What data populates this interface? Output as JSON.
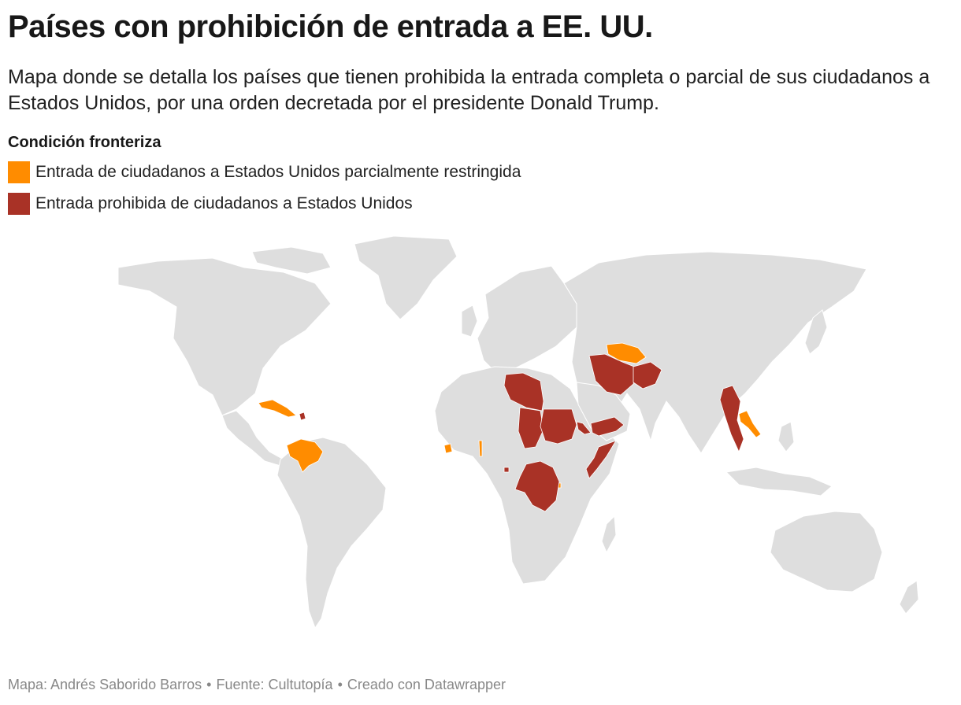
{
  "header": {
    "title": "Países con prohibición de entrada a EE. UU.",
    "subtitle": "Mapa donde se detalla los países que tienen prohibida la entrada completa o parcial de sus ciudadanos a Estados Unidos, por una orden decretada por el presidente Donald Trump."
  },
  "legend": {
    "title": "Condición fronteriza",
    "items": [
      {
        "label": "Entrada de ciudadanos a Estados Unidos parcialmente restringida",
        "color": "#ff8c00"
      },
      {
        "label": "Entrada prohibida de ciudadanos a Estados Unidos",
        "color": "#a93226"
      }
    ]
  },
  "map": {
    "land_color": "#dedede",
    "border_color": "#ffffff",
    "partial_restriction": [
      "Cuba",
      "Venezuela",
      "Sierra Leona",
      "Togo",
      "Burundi",
      "Turkmenistán",
      "Laos"
    ],
    "full_ban": [
      "Haití",
      "Libia",
      "Chad",
      "Sudán",
      "Eritrea",
      "Yemen",
      "Somalia",
      "Irán",
      "Afganistán",
      "Birmania",
      "República del Congo",
      "Guinea Ecuatorial"
    ]
  },
  "footer": {
    "author": "Mapa: Andrés Saborido Barros",
    "source": "Fuente: Cultutopía",
    "tool": "Creado con Datawrapper"
  }
}
